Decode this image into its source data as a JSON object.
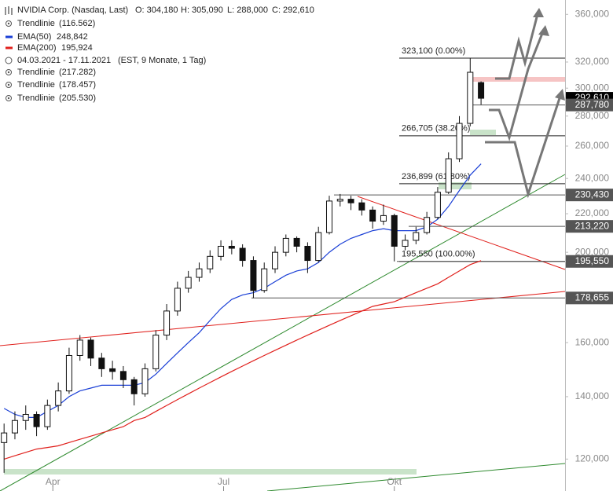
{
  "header": {
    "title": "NVIDIA Corp. (Nasdaq, Last)",
    "open": "O: 304,180",
    "high": "H: 305,090",
    "low": "L: 288,000",
    "close": "C: 292,610",
    "rows": [
      {
        "text": "Trendlinie",
        "note": "(116.562)"
      },
      {
        "text": "04.03.2021 - 17.11.2021",
        "note": "(EST, 9 Monate, 1 Tag)"
      },
      {
        "text": "Trendlinie",
        "note": "(217.282)"
      },
      {
        "text": "Trendlinie",
        "note": "(178.457)"
      },
      {
        "text": "Trendlinie",
        "note": "(205.530)"
      }
    ]
  },
  "chart_data": {
    "type": "candlestick",
    "log_scale": true,
    "grid": false,
    "x": [
      0,
      4,
      8,
      12,
      16,
      20,
      24,
      28,
      32,
      36,
      40,
      44,
      48,
      52,
      56,
      60,
      64,
      68,
      72,
      76,
      80,
      84,
      88,
      92,
      96,
      100,
      104,
      108,
      112,
      116,
      120,
      124,
      128,
      132,
      136,
      140,
      144,
      148,
      152,
      156,
      160,
      164,
      168,
      172,
      176
    ],
    "open": [
      125000,
      128000,
      132000,
      134000,
      130000,
      137000,
      142000,
      155000,
      161000,
      154000,
      150000,
      149000,
      146000,
      141000,
      150000,
      163000,
      173000,
      183000,
      188000,
      192000,
      198000,
      203000,
      202000,
      196000,
      182000,
      192000,
      200000,
      207000,
      203000,
      196000,
      210000,
      227000,
      228000,
      226000,
      222000,
      216000,
      219000,
      203000,
      206000,
      210000,
      218000,
      232000,
      252000,
      275000,
      304180
    ],
    "high": [
      131000,
      135000,
      137000,
      135000,
      139000,
      145000,
      158000,
      163000,
      162000,
      156000,
      153000,
      151000,
      147000,
      152000,
      165000,
      176000,
      186000,
      191000,
      195000,
      201000,
      206000,
      206000,
      204000,
      198000,
      195000,
      203000,
      209000,
      208000,
      205000,
      213000,
      230000,
      231000,
      230000,
      228000,
      224000,
      225000,
      220000,
      209000,
      213000,
      221000,
      235000,
      256000,
      280000,
      323100,
      305090
    ],
    "low": [
      116000,
      126000,
      129000,
      127000,
      129000,
      135000,
      141000,
      153000,
      151000,
      147000,
      146000,
      143000,
      137000,
      140000,
      149000,
      161000,
      171000,
      181000,
      186000,
      190000,
      196000,
      199000,
      193000,
      178655,
      181000,
      190000,
      198000,
      200000,
      190000,
      195000,
      209000,
      224000,
      222000,
      219000,
      212000,
      214000,
      195550,
      201000,
      204000,
      209000,
      217000,
      231000,
      250000,
      273000,
      288000
    ],
    "close": [
      128000,
      132000,
      134000,
      130000,
      137000,
      142000,
      155000,
      161000,
      154000,
      150000,
      149000,
      146000,
      141000,
      150000,
      163000,
      173000,
      183000,
      188000,
      192000,
      198000,
      203000,
      202000,
      196000,
      182000,
      192000,
      200000,
      207000,
      203000,
      196000,
      210000,
      227000,
      228000,
      226000,
      222000,
      216000,
      219000,
      203000,
      206000,
      210000,
      218000,
      232000,
      252000,
      275000,
      312000,
      292610
    ],
    "last_label": "292,610",
    "series": [
      {
        "name": "EMA(50)",
        "value_label": "248,842",
        "color": "#1a3fd6",
        "values": [
          136000,
          134000,
          133000,
          133000,
          135000,
          137000,
          140000,
          142000,
          143000,
          144000,
          144000,
          144000,
          144000,
          145000,
          148000,
          152000,
          156000,
          160000,
          164000,
          169000,
          174000,
          178000,
          180000,
          181000,
          183000,
          186000,
          189000,
          191000,
          192000,
          195000,
          200000,
          204000,
          207000,
          209000,
          211000,
          212000,
          211000,
          211000,
          211000,
          213000,
          217000,
          224000,
          233000,
          242000,
          248842
        ]
      },
      {
        "name": "EMA(200)",
        "value_label": "195,924",
        "color": "#e0201c",
        "values": [
          120000,
          121000,
          122000,
          123000,
          123500,
          124000,
          125000,
          126000,
          127000,
          128000,
          129000,
          130000,
          132000,
          133000,
          135000,
          137000,
          139000,
          141000,
          143000,
          145000,
          147000,
          149000,
          151000,
          153000,
          155000,
          157000,
          159000,
          161000,
          163000,
          165000,
          167000,
          169000,
          171000,
          173000,
          175000,
          176000,
          177000,
          179000,
          181000,
          183000,
          185000,
          188000,
          191000,
          194000,
          195924
        ]
      }
    ],
    "levels": {
      "values": [
        287780,
        230430,
        213220,
        195550,
        178655
      ],
      "value_labels": [
        "287,780",
        "230,430",
        "213,220",
        "195,550",
        "178,655"
      ]
    },
    "fib": {
      "values": [
        323100,
        266705,
        236899,
        195550
      ],
      "value_labels": [
        "323,100 (0.00%)",
        "266,705 (38.20%)",
        "236,899 (61.80%)",
        "195,550 (100.00%)"
      ]
    },
    "xlim": [
      -1.5,
      207
    ],
    "xticks": [
      {
        "value": 18,
        "label": "Apr"
      },
      {
        "value": 81,
        "label": "Jul"
      },
      {
        "value": 144,
        "label": "Okt"
      }
    ],
    "ylim": [
      110900,
      373000
    ],
    "yticks": [
      {
        "value": 120000,
        "label": "120,000"
      },
      {
        "value": 140000,
        "label": "140,000"
      },
      {
        "value": 160000,
        "label": "160,000"
      },
      {
        "value": 200000,
        "label": "200,000"
      },
      {
        "value": 220000,
        "label": "220,000"
      },
      {
        "value": 240000,
        "label": "240,000"
      },
      {
        "value": 260000,
        "label": "260,000"
      },
      {
        "value": 280000,
        "label": "280,000"
      },
      {
        "value": 300000,
        "label": "300,000"
      },
      {
        "value": 320000,
        "label": "320,000"
      },
      {
        "value": 360000,
        "label": "360,000"
      }
    ]
  }
}
